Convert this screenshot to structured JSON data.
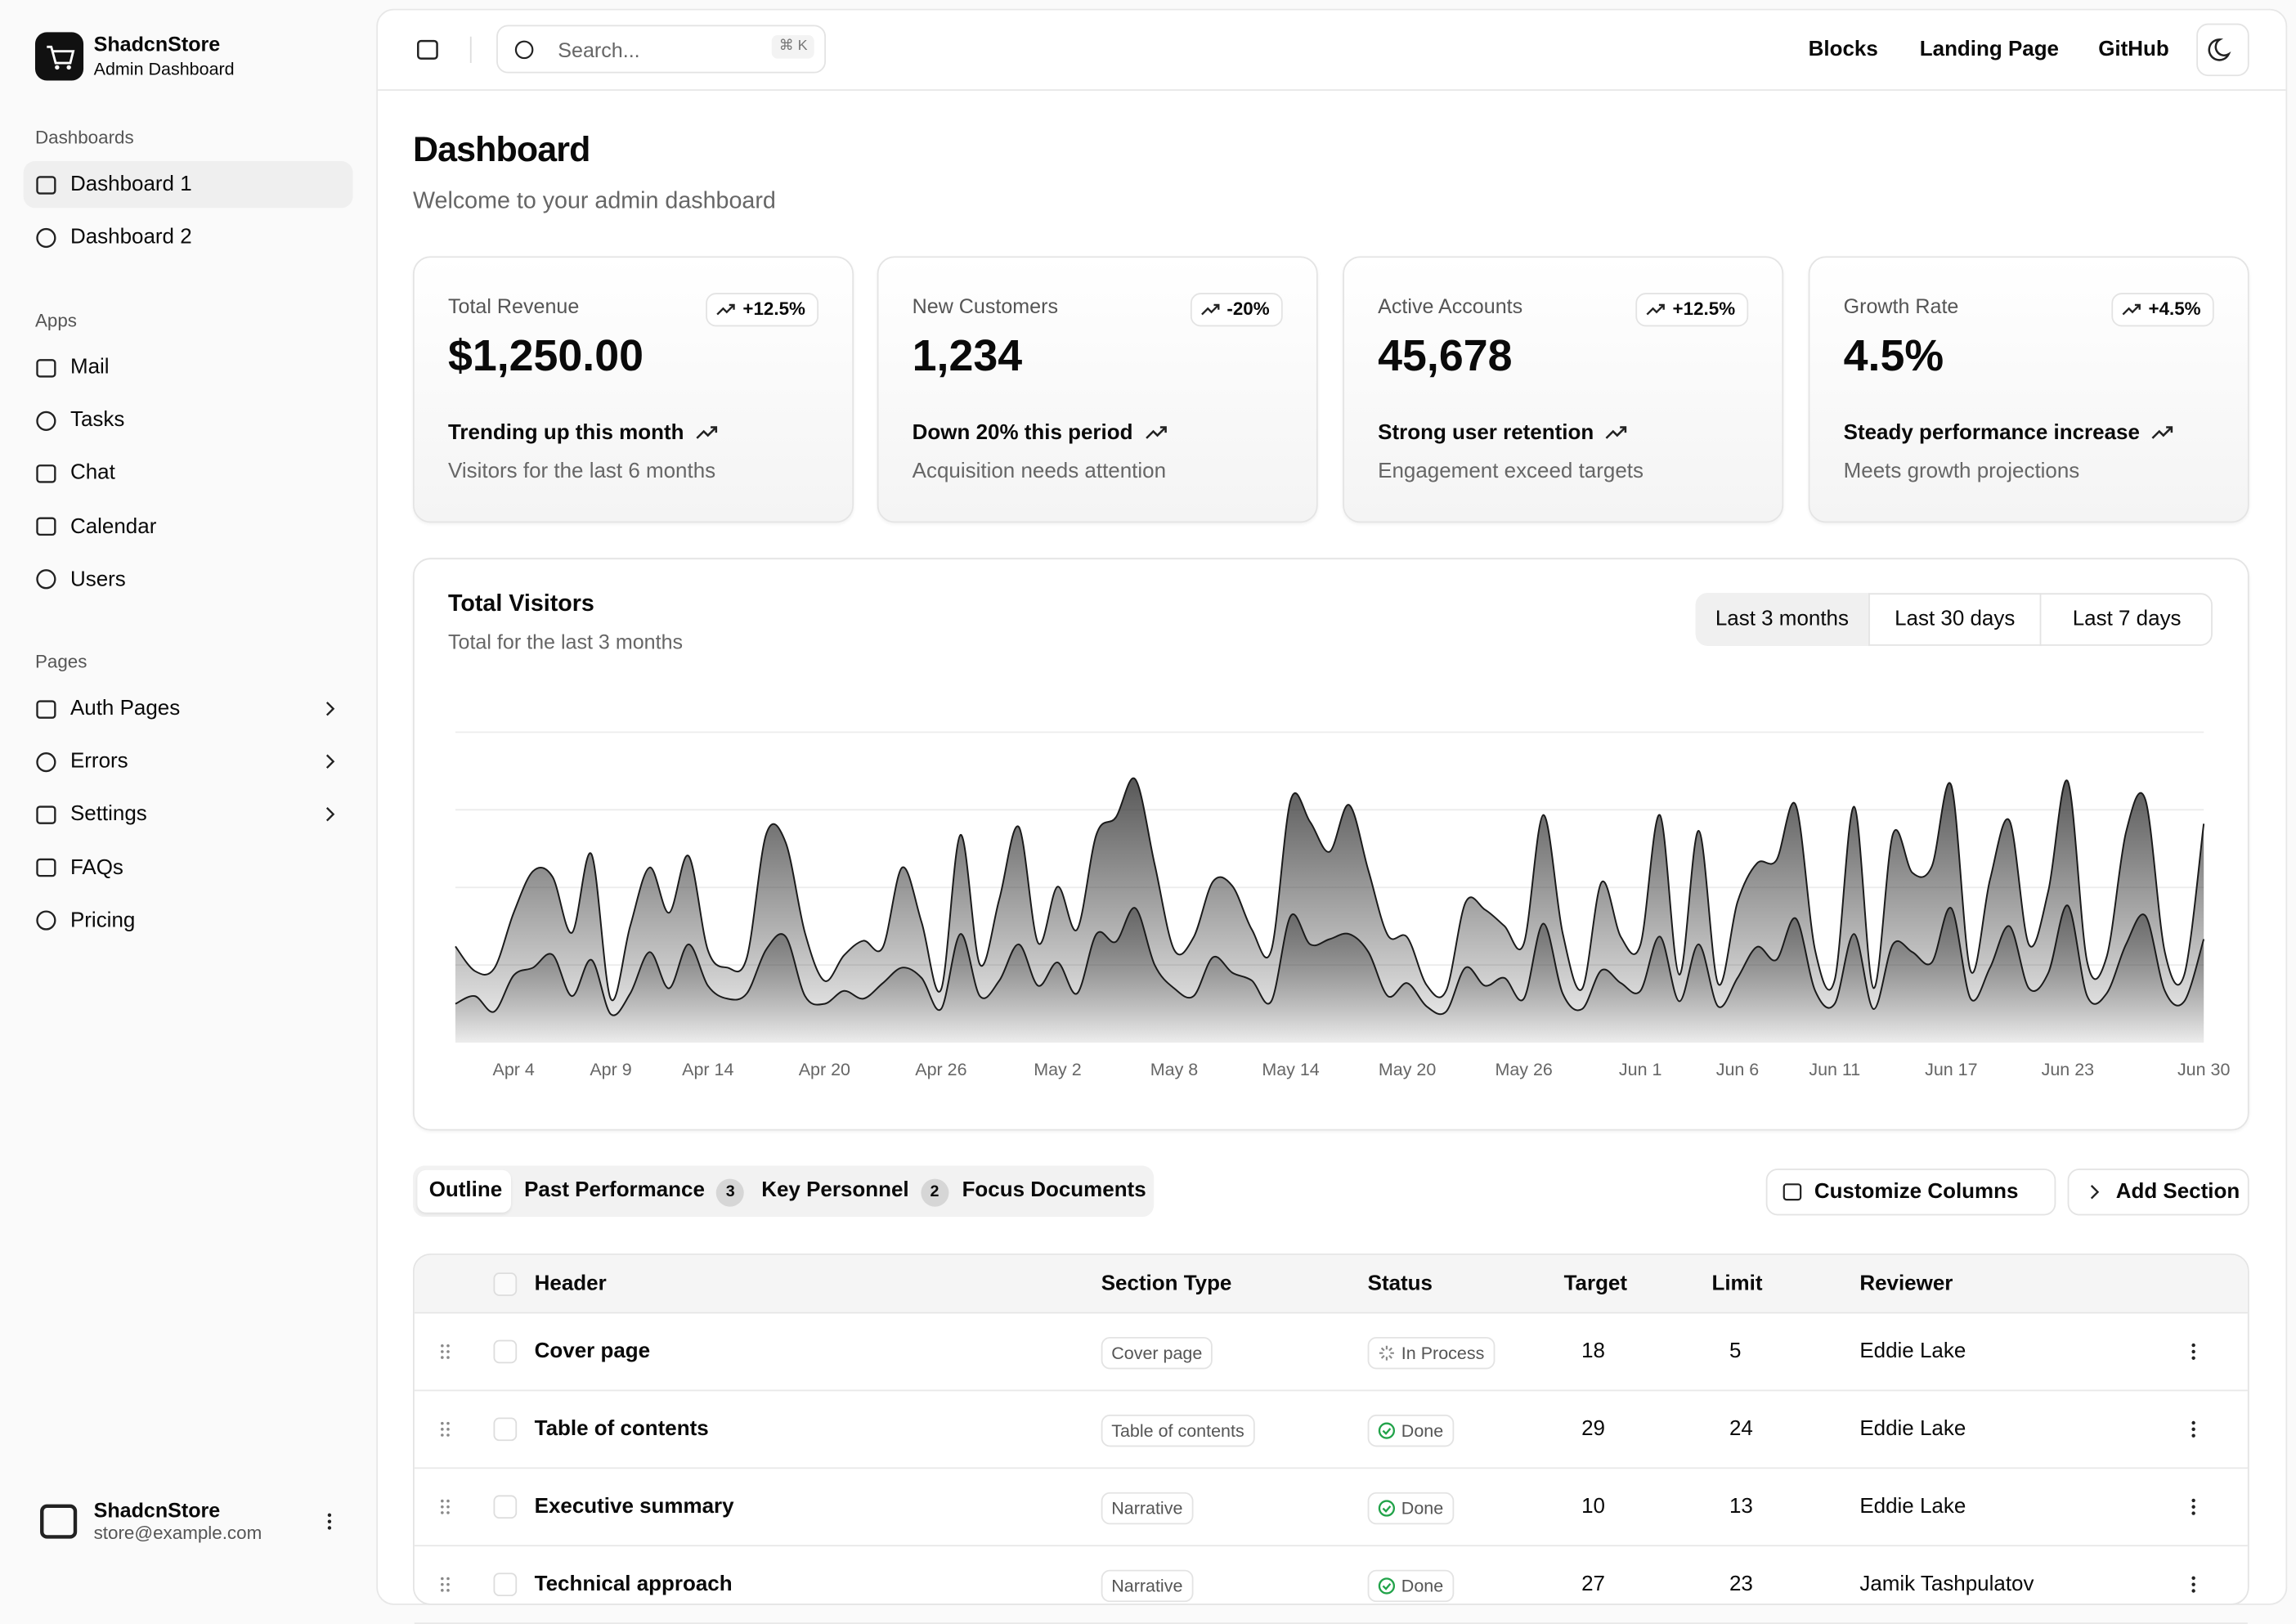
{
  "sidebar": {
    "brand": "ShadcnStore",
    "brand_sub": "Admin Dashboard",
    "groups": [
      {
        "label": "Dashboards",
        "items": [
          "Dashboard 1",
          "Dashboard 2"
        ]
      },
      {
        "label": "Apps",
        "items": [
          "Mail",
          "Tasks",
          "Chat",
          "Calendar",
          "Users"
        ]
      },
      {
        "label": "Pages",
        "items": [
          "Auth Pages",
          "Errors",
          "Settings",
          "FAQs",
          "Pricing"
        ]
      }
    ],
    "user": {
      "name": "ShadcnStore",
      "email": "store@example.com"
    }
  },
  "header": {
    "search": "Search...",
    "shortcut": "⌘ K",
    "links": [
      "Blocks",
      "Landing Page",
      "GitHub"
    ]
  },
  "page": {
    "title": "Dashboard",
    "subtitle": "Welcome to your admin dashboard"
  },
  "cards": [
    {
      "label": "Total Revenue",
      "badge": "+12.5%",
      "value": "$1,250.00",
      "trend": "Trending up this month",
      "note": "Visitors for the last 6 months"
    },
    {
      "label": "New Customers",
      "badge": "-20%",
      "value": "1,234",
      "trend": "Down 20% this period",
      "note": "Acquisition needs attention"
    },
    {
      "label": "Active Accounts",
      "badge": "+12.5%",
      "value": "45,678",
      "trend": "Strong user retention",
      "note": "Engagement exceed targets"
    },
    {
      "label": "Growth Rate",
      "badge": "+4.5%",
      "value": "4.5%",
      "trend": "Steady performance increase",
      "note": "Meets growth projections"
    }
  ],
  "chart_data": {
    "type": "area",
    "stacked": true,
    "title": "Total Visitors",
    "subtitle": "Total for the last 3 months",
    "ranges": [
      "Last 3 months",
      "Last 30 days",
      "Last 7 days"
    ],
    "categories": [
      null,
      null,
      null,
      "Apr 4",
      null,
      null,
      null,
      null,
      "Apr 9",
      null,
      null,
      null,
      null,
      "Apr 14",
      null,
      null,
      null,
      null,
      null,
      "Apr 20",
      null,
      null,
      null,
      null,
      null,
      "Apr 26",
      null,
      null,
      null,
      null,
      null,
      "May 2",
      null,
      null,
      null,
      null,
      null,
      "May 8",
      null,
      null,
      null,
      null,
      null,
      "May 14",
      null,
      null,
      null,
      null,
      null,
      "May 20",
      null,
      null,
      null,
      null,
      null,
      "May 26",
      null,
      null,
      null,
      null,
      null,
      "Jun 1",
      null,
      null,
      null,
      null,
      "Jun 6",
      null,
      null,
      null,
      null,
      "Jun 11",
      null,
      null,
      null,
      null,
      null,
      "Jun 17",
      null,
      null,
      null,
      null,
      null,
      "Jun 23",
      null,
      null,
      null,
      null,
      null,
      null,
      "Jun 30"
    ],
    "series": [
      {
        "color": "#1a1a1a",
        "values": [
          150,
          180,
          120,
          260,
          290,
          340,
          180,
          320,
          110,
          190,
          350,
          210,
          380,
          220,
          170,
          190,
          360,
          410,
          180,
          150,
          200,
          170,
          230,
          290,
          250,
          130,
          420,
          180,
          240,
          380,
          220,
          310,
          190,
          420,
          390,
          520,
          300,
          210,
          180,
          330,
          270,
          240,
          160,
          490,
          380,
          400,
          420,
          350,
          180,
          230,
          140,
          120,
          290,
          220,
          250,
          170,
          460,
          190,
          130,
          280,
          230,
          200,
          410,
          160,
          380,
          140,
          250,
          370,
          320,
          480,
          200,
          150,
          420,
          130,
          380,
          350,
          310,
          520,
          170,
          290,
          450,
          210,
          270,
          530,
          180,
          190,
          380,
          490,
          200,
          160,
          400
        ]
      },
      {
        "color": "#1a1a1a",
        "values": [
          222,
          97,
          167,
          242,
          373,
          301,
          245,
          409,
          59,
          261,
          327,
          292,
          342,
          137,
          120,
          138,
          446,
          364,
          243,
          89,
          137,
          224,
          138,
          387,
          215,
          75,
          383,
          122,
          315,
          454,
          165,
          293,
          247,
          385,
          481,
          498,
          388,
          149,
          227,
          293,
          335,
          197,
          197,
          448,
          473,
          338,
          499,
          315,
          235,
          177,
          82,
          81,
          252,
          294,
          201,
          213,
          420,
          233,
          78,
          340,
          178,
          178,
          470,
          103,
          439,
          88,
          294,
          323,
          385,
          438,
          155,
          92,
          492,
          81,
          426,
          307,
          371,
          475,
          107,
          341,
          408,
          169,
          317,
          480,
          132,
          141,
          434,
          448,
          149,
          103,
          446
        ]
      }
    ],
    "ylim": [
      0,
      1200
    ],
    "grid": true
  },
  "tabs": [
    {
      "label": "Outline"
    },
    {
      "label": "Past Performance",
      "count": 3
    },
    {
      "label": "Key Personnel",
      "count": 2
    },
    {
      "label": "Focus Documents"
    }
  ],
  "actions": [
    "Customize Columns",
    "Add Section"
  ],
  "table": {
    "columns": [
      "Header",
      "Section Type",
      "Status",
      "Target",
      "Limit",
      "Reviewer"
    ],
    "rows": [
      [
        "Cover page",
        "Cover page",
        "In Process",
        18,
        5,
        "Eddie Lake"
      ],
      [
        "Table of contents",
        "Table of contents",
        "Done",
        29,
        24,
        "Eddie Lake"
      ],
      [
        "Executive summary",
        "Narrative",
        "Done",
        10,
        13,
        "Eddie Lake"
      ],
      [
        "Technical approach",
        "Narrative",
        "Done",
        27,
        23,
        "Jamik Tashpulatov"
      ]
    ]
  }
}
